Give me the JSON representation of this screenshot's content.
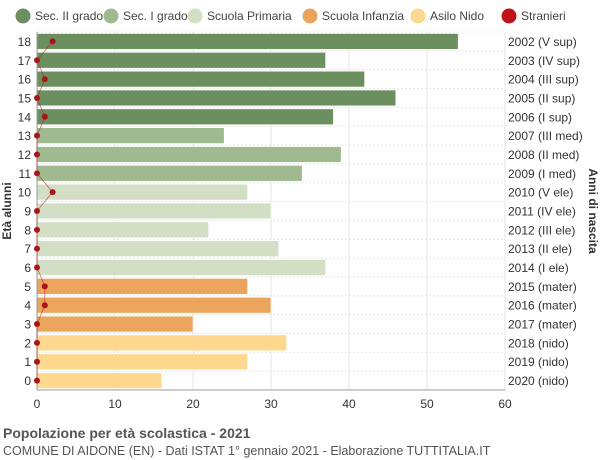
{
  "chart_data": {
    "type": "bar",
    "orientation": "horizontal",
    "title": "Popolazione per età scolastica - 2021",
    "subtitle": "COMUNE DI AIDONE (EN) - Dati ISTAT 1° gennaio 2021 - Elaborazione TUTTITALIA.IT",
    "ylabel_left": "Età alunni",
    "ylabel_right": "Anni di nascita",
    "xlim": [
      0,
      60
    ],
    "xticks": [
      0,
      10,
      20,
      30,
      40,
      50,
      60
    ],
    "grid": true,
    "legend_position": "top",
    "legend": [
      {
        "name": "Sec. II grado",
        "color": "#6b8f5e"
      },
      {
        "name": "Sec. I grado",
        "color": "#9fba8e"
      },
      {
        "name": "Scuola Primaria",
        "color": "#d3dfc4"
      },
      {
        "name": "Scuola Infanzia",
        "color": "#eba45c"
      },
      {
        "name": "Asilo Nido",
        "color": "#fdd88e"
      },
      {
        "name": "Stranieri",
        "color": "#c0131a"
      }
    ],
    "rows": [
      {
        "age": "18",
        "birth": "2002 (V sup)",
        "value": 54,
        "stranieri": 2,
        "group": 0
      },
      {
        "age": "17",
        "birth": "2003 (IV sup)",
        "value": 37,
        "stranieri": 0,
        "group": 0
      },
      {
        "age": "16",
        "birth": "2004 (III sup)",
        "value": 42,
        "stranieri": 1,
        "group": 0
      },
      {
        "age": "15",
        "birth": "2005 (II sup)",
        "value": 46,
        "stranieri": 0,
        "group": 0
      },
      {
        "age": "14",
        "birth": "2006 (I sup)",
        "value": 38,
        "stranieri": 1,
        "group": 0
      },
      {
        "age": "13",
        "birth": "2007 (III med)",
        "value": 24,
        "stranieri": 0,
        "group": 1
      },
      {
        "age": "12",
        "birth": "2008 (II med)",
        "value": 39,
        "stranieri": 0,
        "group": 1
      },
      {
        "age": "11",
        "birth": "2009 (I med)",
        "value": 34,
        "stranieri": 0,
        "group": 1
      },
      {
        "age": "10",
        "birth": "2010 (V ele)",
        "value": 27,
        "stranieri": 2,
        "group": 2
      },
      {
        "age": "9",
        "birth": "2011 (IV ele)",
        "value": 30,
        "stranieri": 0,
        "group": 2
      },
      {
        "age": "8",
        "birth": "2012 (III ele)",
        "value": 22,
        "stranieri": 0,
        "group": 2
      },
      {
        "age": "7",
        "birth": "2013 (II ele)",
        "value": 31,
        "stranieri": 0,
        "group": 2
      },
      {
        "age": "6",
        "birth": "2014 (I ele)",
        "value": 37,
        "stranieri": 0,
        "group": 2
      },
      {
        "age": "5",
        "birth": "2015 (mater)",
        "value": 27,
        "stranieri": 1,
        "group": 3
      },
      {
        "age": "4",
        "birth": "2016 (mater)",
        "value": 30,
        "stranieri": 1,
        "group": 3
      },
      {
        "age": "3",
        "birth": "2017 (mater)",
        "value": 20,
        "stranieri": 0,
        "group": 3
      },
      {
        "age": "2",
        "birth": "2018 (nido)",
        "value": 32,
        "stranieri": 0,
        "group": 4
      },
      {
        "age": "1",
        "birth": "2019 (nido)",
        "value": 27,
        "stranieri": 0,
        "group": 4
      },
      {
        "age": "0",
        "birth": "2020 (nido)",
        "value": 16,
        "stranieri": 0,
        "group": 4
      }
    ]
  }
}
